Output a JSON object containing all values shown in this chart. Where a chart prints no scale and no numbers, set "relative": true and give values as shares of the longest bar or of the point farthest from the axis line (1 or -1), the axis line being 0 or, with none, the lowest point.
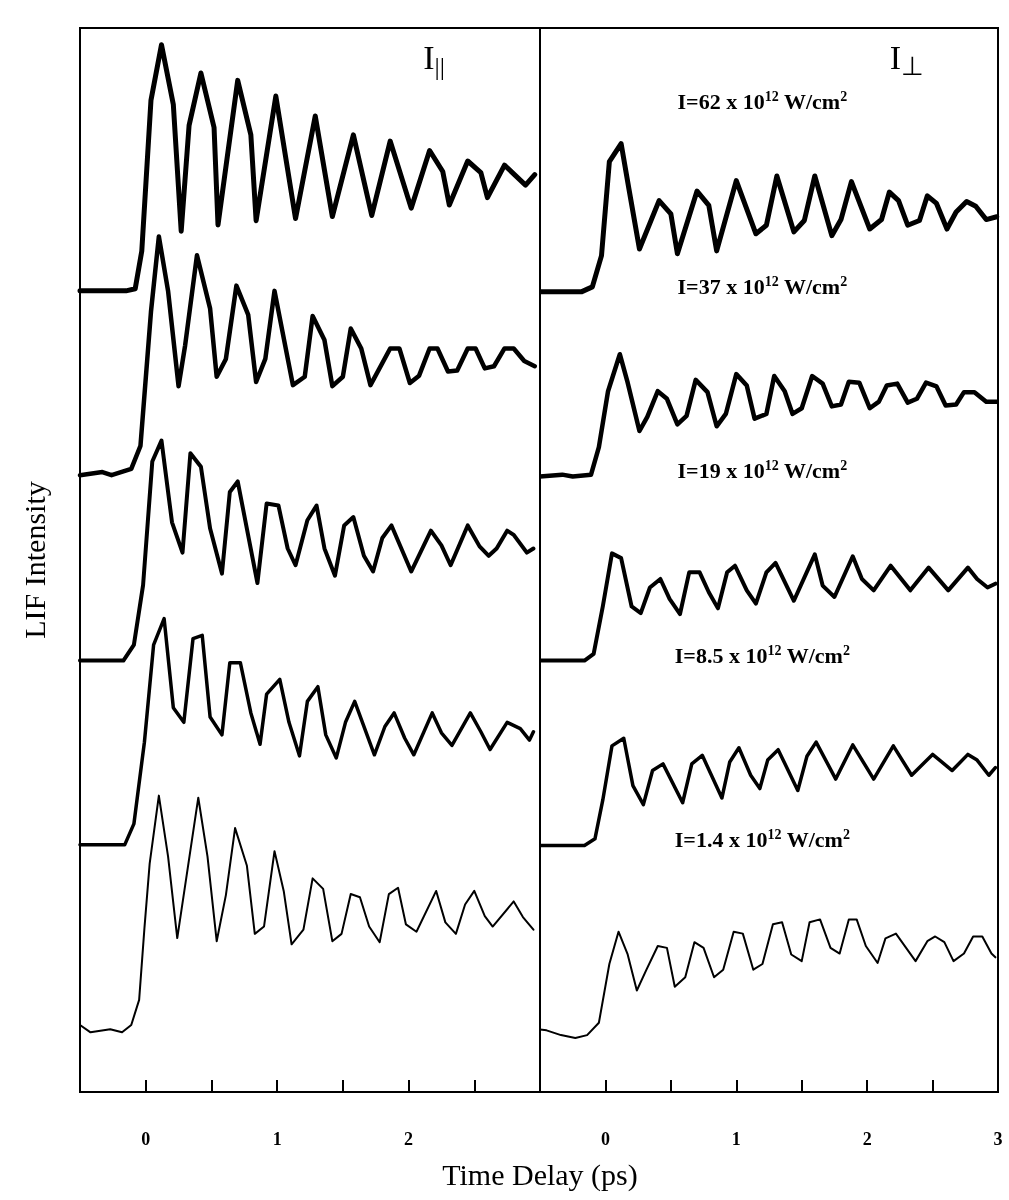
{
  "chart_data": [
    {
      "type": "line",
      "title": "I$_{||}$",
      "xlabel": "Time Delay (ps)",
      "ylabel": "LIF Intensity",
      "relative": true,
      "xlim": [
        -0.5,
        3
      ],
      "xticks": [
        0,
        {
          "value": 0.5,
          "label": null
        },
        1,
        {
          "value": 1.5,
          "label": null
        },
        2,
        {
          "value": 2.5,
          "label": null
        }
      ],
      "grid": false,
      "series": [
        {
          "color": "#000000",
          "x": [
            -0.5,
            -0.15,
            -0.08,
            -0.03,
            0.04,
            0.12,
            0.21,
            0.27,
            0.33,
            0.42,
            0.52,
            0.55,
            0.7,
            0.8,
            0.84,
            0.99,
            1.14,
            1.29,
            1.42,
            1.58,
            1.72,
            1.86,
            2.02,
            2.16,
            2.26,
            2.31,
            2.45,
            2.55,
            2.6,
            2.73,
            2.89,
            2.96
          ],
          "values": [
            0.765,
            0.765,
            0.767,
            0.803,
            0.947,
            1.0,
            0.943,
            0.822,
            0.923,
            0.973,
            0.921,
            0.828,
            0.966,
            0.914,
            0.832,
            0.951,
            0.834,
            0.932,
            0.836,
            0.914,
            0.837,
            0.908,
            0.844,
            0.899,
            0.879,
            0.847,
            0.889,
            0.878,
            0.854,
            0.885,
            0.866,
            0.876
          ]
        },
        {
          "color": "#000000",
          "x": [
            -0.5,
            -0.33,
            -0.26,
            -0.11,
            -0.04,
            0.04,
            0.1,
            0.17,
            0.25,
            0.3,
            0.39,
            0.49,
            0.54,
            0.61,
            0.69,
            0.78,
            0.84,
            0.91,
            0.98,
            1.12,
            1.21,
            1.27,
            1.36,
            1.42,
            1.5,
            1.56,
            1.64,
            1.71,
            1.86,
            1.93,
            2.01,
            2.08,
            2.16,
            2.22,
            2.3,
            2.37,
            2.45,
            2.51,
            2.58,
            2.65,
            2.73,
            2.8,
            2.88,
            2.96
          ],
          "values": [
            0.589,
            0.592,
            0.589,
            0.595,
            0.617,
            0.745,
            0.817,
            0.765,
            0.674,
            0.713,
            0.799,
            0.748,
            0.683,
            0.7,
            0.77,
            0.742,
            0.678,
            0.7,
            0.765,
            0.675,
            0.683,
            0.741,
            0.718,
            0.674,
            0.683,
            0.729,
            0.71,
            0.675,
            0.71,
            0.71,
            0.677,
            0.684,
            0.71,
            0.71,
            0.688,
            0.689,
            0.71,
            0.71,
            0.691,
            0.693,
            0.71,
            0.71,
            0.698,
            0.693
          ]
        },
        {
          "color": "#000000",
          "x": [
            -0.5,
            -0.17,
            -0.09,
            -0.02,
            0.05,
            0.12,
            0.2,
            0.28,
            0.34,
            0.42,
            0.49,
            0.58,
            0.64,
            0.7,
            0.85,
            0.92,
            1.01,
            1.08,
            1.14,
            1.23,
            1.3,
            1.36,
            1.44,
            1.51,
            1.58,
            1.66,
            1.73,
            1.8,
            1.87,
            2.02,
            2.17,
            2.25,
            2.32,
            2.45,
            2.54,
            2.61,
            2.67,
            2.75,
            2.8,
            2.9,
            2.95
          ],
          "values": [
            0.412,
            0.412,
            0.427,
            0.484,
            0.602,
            0.622,
            0.544,
            0.515,
            0.61,
            0.597,
            0.538,
            0.495,
            0.573,
            0.583,
            0.486,
            0.562,
            0.56,
            0.519,
            0.503,
            0.546,
            0.56,
            0.519,
            0.493,
            0.541,
            0.549,
            0.512,
            0.497,
            0.529,
            0.541,
            0.497,
            0.536,
            0.522,
            0.503,
            0.541,
            0.521,
            0.512,
            0.519,
            0.536,
            0.532,
            0.515,
            0.519
          ]
        },
        {
          "color": "#000000",
          "x": [
            -0.5,
            -0.16,
            -0.09,
            -0.01,
            0.06,
            0.14,
            0.21,
            0.29,
            0.36,
            0.43,
            0.49,
            0.58,
            0.64,
            0.72,
            0.8,
            0.87,
            0.92,
            1.02,
            1.09,
            1.17,
            1.23,
            1.31,
            1.37,
            1.45,
            1.52,
            1.59,
            1.74,
            1.82,
            1.89,
            1.97,
            2.04,
            2.18,
            2.25,
            2.33,
            2.47,
            2.55,
            2.62,
            2.75,
            2.85,
            2.92,
            2.95
          ],
          "values": [
            0.236,
            0.236,
            0.256,
            0.334,
            0.427,
            0.452,
            0.367,
            0.353,
            0.433,
            0.436,
            0.358,
            0.341,
            0.41,
            0.41,
            0.362,
            0.332,
            0.38,
            0.394,
            0.353,
            0.321,
            0.373,
            0.387,
            0.341,
            0.319,
            0.353,
            0.373,
            0.322,
            0.349,
            0.362,
            0.338,
            0.322,
            0.362,
            0.343,
            0.331,
            0.362,
            0.344,
            0.327,
            0.353,
            0.347,
            0.336,
            0.344
          ]
        },
        {
          "color": "#000000",
          "x": [
            -0.5,
            -0.42,
            -0.27,
            -0.18,
            -0.11,
            -0.05,
            -0.01,
            0.03,
            0.1,
            0.17,
            0.24,
            0.32,
            0.4,
            0.47,
            0.54,
            0.61,
            0.68,
            0.77,
            0.83,
            0.9,
            0.98,
            1.05,
            1.11,
            1.2,
            1.27,
            1.35,
            1.42,
            1.49,
            1.56,
            1.63,
            1.7,
            1.78,
            1.85,
            1.92,
            1.98,
            2.06,
            2.21,
            2.28,
            2.36,
            2.43,
            2.5,
            2.58,
            2.64,
            2.8,
            2.87,
            2.95
          ],
          "values": [
            0.064,
            0.057,
            0.06,
            0.057,
            0.064,
            0.088,
            0.156,
            0.218,
            0.283,
            0.225,
            0.147,
            0.214,
            0.281,
            0.225,
            0.144,
            0.188,
            0.252,
            0.216,
            0.151,
            0.158,
            0.23,
            0.192,
            0.141,
            0.155,
            0.204,
            0.194,
            0.144,
            0.151,
            0.189,
            0.186,
            0.158,
            0.143,
            0.189,
            0.195,
            0.16,
            0.153,
            0.192,
            0.162,
            0.151,
            0.179,
            0.192,
            0.168,
            0.158,
            0.182,
            0.167,
            0.155
          ]
        }
      ]
    },
    {
      "type": "line",
      "title": "I$_{⊥}$",
      "relative": true,
      "xlim": [
        -0.5,
        3
      ],
      "xticks": [
        0,
        {
          "value": 0.5,
          "label": null
        },
        1,
        {
          "value": 1.5,
          "label": null
        },
        2,
        {
          "value": 2.5,
          "label": null
        },
        3
      ],
      "grid": false,
      "annotations": [
        "I=62 x 10$^{12}$ W/cm$^{2}$",
        "I=37 x 10$^{12}$ W/cm$^{2}$",
        "I=19 x 10$^{12}$ W/cm$^{2}$",
        "I=8.5 x 10$^{12}$ W/cm$^{2}$",
        "I=1.4 x 10$^{12}$ W/cm$^{2}$"
      ],
      "series": [
        {
          "color": "#000000",
          "x": [
            -0.5,
            -0.18,
            -0.1,
            -0.03,
            0.03,
            0.12,
            0.18,
            0.26,
            0.41,
            0.5,
            0.55,
            0.7,
            0.79,
            0.85,
            1.0,
            1.15,
            1.23,
            1.31,
            1.44,
            1.52,
            1.6,
            1.73,
            1.8,
            1.88,
            2.02,
            2.11,
            2.17,
            2.24,
            2.31,
            2.4,
            2.46,
            2.53,
            2.61,
            2.68,
            2.76,
            2.83,
            2.91,
            2.99
          ],
          "values": [
            0.844,
            0.844,
            0.849,
            0.882,
            0.981,
            1.0,
            0.952,
            0.889,
            0.94,
            0.926,
            0.884,
            0.95,
            0.935,
            0.887,
            0.961,
            0.905,
            0.914,
            0.966,
            0.907,
            0.919,
            0.966,
            0.903,
            0.92,
            0.96,
            0.91,
            0.92,
            0.949,
            0.94,
            0.914,
            0.919,
            0.945,
            0.937,
            0.91,
            0.928,
            0.939,
            0.934,
            0.92,
            0.923
          ]
        },
        {
          "color": "#000000",
          "x": [
            -0.5,
            -0.33,
            -0.25,
            -0.11,
            -0.05,
            0.02,
            0.11,
            0.17,
            0.26,
            0.32,
            0.4,
            0.47,
            0.55,
            0.62,
            0.69,
            0.78,
            0.85,
            0.92,
            1.0,
            1.08,
            1.14,
            1.23,
            1.29,
            1.37,
            1.43,
            1.5,
            1.58,
            1.66,
            1.73,
            1.8,
            1.86,
            1.94,
            2.02,
            2.09,
            2.15,
            2.23,
            2.31,
            2.38,
            2.45,
            2.53,
            2.6,
            2.68,
            2.74,
            2.82,
            2.91,
            2.99
          ],
          "values": [
            0.649,
            0.651,
            0.649,
            0.651,
            0.68,
            0.739,
            0.778,
            0.748,
            0.697,
            0.712,
            0.739,
            0.731,
            0.704,
            0.713,
            0.751,
            0.738,
            0.702,
            0.715,
            0.757,
            0.745,
            0.71,
            0.715,
            0.755,
            0.739,
            0.715,
            0.721,
            0.755,
            0.747,
            0.723,
            0.725,
            0.749,
            0.748,
            0.721,
            0.728,
            0.745,
            0.747,
            0.727,
            0.731,
            0.748,
            0.744,
            0.724,
            0.725,
            0.738,
            0.738,
            0.728,
            0.728
          ]
        },
        {
          "color": "#000000",
          "x": [
            -0.5,
            -0.16,
            -0.09,
            -0.02,
            0.05,
            0.12,
            0.2,
            0.27,
            0.34,
            0.42,
            0.49,
            0.57,
            0.64,
            0.72,
            0.79,
            0.86,
            0.93,
            0.99,
            1.08,
            1.15,
            1.23,
            1.3,
            1.44,
            1.6,
            1.66,
            1.75,
            1.89,
            1.96,
            2.05,
            2.18,
            2.33,
            2.47,
            2.62,
            2.77,
            2.84,
            2.92,
            2.98
          ],
          "values": [
            0.455,
            0.455,
            0.462,
            0.512,
            0.568,
            0.563,
            0.512,
            0.505,
            0.532,
            0.541,
            0.52,
            0.504,
            0.548,
            0.548,
            0.527,
            0.51,
            0.548,
            0.555,
            0.529,
            0.515,
            0.548,
            0.558,
            0.518,
            0.567,
            0.534,
            0.522,
            0.565,
            0.541,
            0.529,
            0.555,
            0.529,
            0.553,
            0.529,
            0.553,
            0.541,
            0.532,
            0.536
          ]
        },
        {
          "color": "#000000",
          "x": [
            -0.5,
            -0.16,
            -0.08,
            -0.02,
            0.05,
            0.14,
            0.21,
            0.29,
            0.36,
            0.44,
            0.59,
            0.66,
            0.74,
            0.89,
            0.95,
            1.02,
            1.11,
            1.18,
            1.24,
            1.32,
            1.47,
            1.54,
            1.61,
            1.76,
            1.89,
            2.05,
            2.2,
            2.34,
            2.5,
            2.65,
            2.77,
            2.84,
            2.93,
            2.98
          ],
          "values": [
            0.26,
            0.26,
            0.267,
            0.308,
            0.365,
            0.373,
            0.323,
            0.303,
            0.339,
            0.346,
            0.305,
            0.346,
            0.355,
            0.31,
            0.348,
            0.363,
            0.334,
            0.32,
            0.35,
            0.361,
            0.318,
            0.354,
            0.369,
            0.33,
            0.366,
            0.33,
            0.365,
            0.334,
            0.356,
            0.339,
            0.356,
            0.35,
            0.334,
            0.342
          ]
        },
        {
          "color": "#000000",
          "x": [
            -0.5,
            -0.45,
            -0.34,
            -0.23,
            -0.14,
            -0.05,
            0.03,
            0.1,
            0.17,
            0.24,
            0.31,
            0.4,
            0.47,
            0.53,
            0.61,
            0.68,
            0.75,
            0.83,
            0.9,
            0.98,
            1.05,
            1.13,
            1.2,
            1.28,
            1.35,
            1.42,
            1.5,
            1.56,
            1.64,
            1.72,
            1.79,
            1.86,
            1.92,
            1.99,
            2.08,
            2.14,
            2.22,
            2.37,
            2.46,
            2.52,
            2.59,
            2.66,
            2.74,
            2.81,
            2.88,
            2.95,
            2.98
          ],
          "values": [
            0.066,
            0.065,
            0.06,
            0.057,
            0.06,
            0.073,
            0.135,
            0.169,
            0.145,
            0.107,
            0.128,
            0.154,
            0.152,
            0.111,
            0.121,
            0.158,
            0.152,
            0.121,
            0.129,
            0.169,
            0.167,
            0.129,
            0.135,
            0.177,
            0.179,
            0.145,
            0.138,
            0.179,
            0.182,
            0.152,
            0.146,
            0.182,
            0.182,
            0.154,
            0.136,
            0.162,
            0.167,
            0.138,
            0.159,
            0.164,
            0.158,
            0.138,
            0.146,
            0.164,
            0.164,
            0.146,
            0.142
          ]
        }
      ]
    }
  ]
}
